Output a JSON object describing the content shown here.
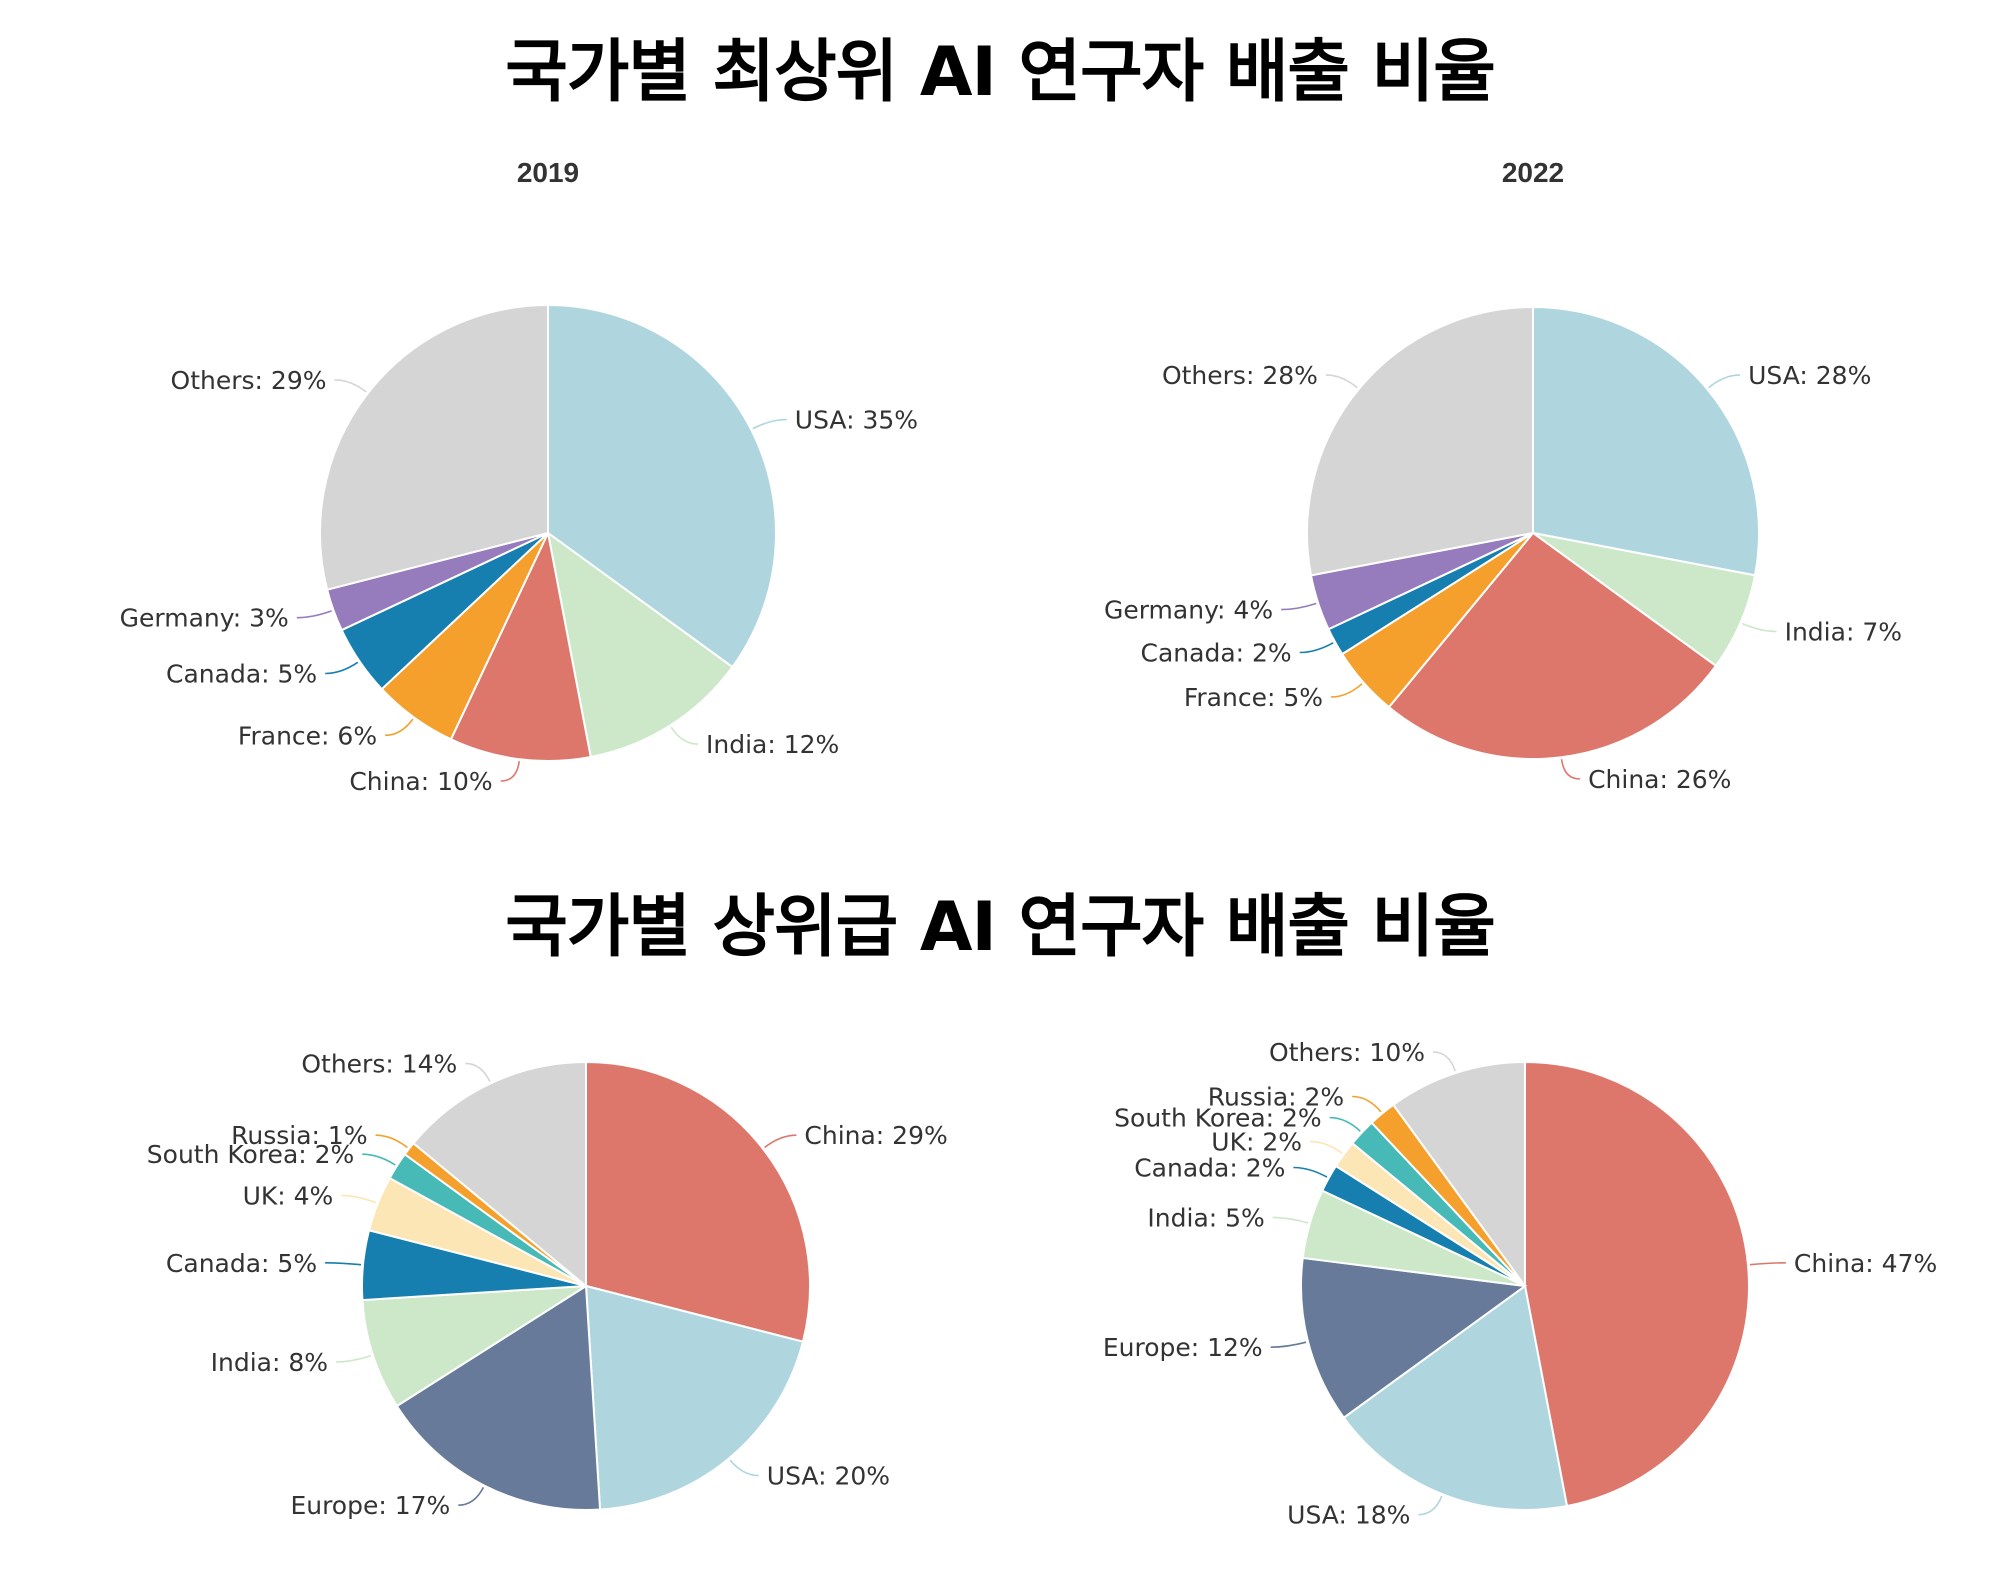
{
  "titles": {
    "top": "국가별 최상위 AI 연구자 배출 비율",
    "bottom": "국가별 상위급 AI 연구자 배출 비율"
  },
  "colors": {
    "USA": "#afd6df",
    "India": "#cde8c9",
    "China": "#dd776c",
    "France": "#f59f2c",
    "Canada": "#167fb0",
    "Germany": "#967bbd",
    "Others": "#d5d5d5",
    "Europe": "#677a99",
    "UK": "#fde6b6",
    "South Korea": "#47b9b6",
    "Russia": "#f59f2c"
  },
  "chart_data": [
    {
      "type": "pie",
      "group": "국가별 최상위 AI 연구자 배출 비율",
      "title": "2019",
      "slices": [
        {
          "label": "USA",
          "value": 35
        },
        {
          "label": "India",
          "value": 12
        },
        {
          "label": "China",
          "value": 10
        },
        {
          "label": "France",
          "value": 6
        },
        {
          "label": "Canada",
          "value": 5
        },
        {
          "label": "Germany",
          "value": 3
        },
        {
          "label": "Others",
          "value": 29
        }
      ]
    },
    {
      "type": "pie",
      "group": "국가별 최상위 AI 연구자 배출 비율",
      "title": "2022",
      "slices": [
        {
          "label": "USA",
          "value": 28
        },
        {
          "label": "India",
          "value": 7
        },
        {
          "label": "China",
          "value": 26
        },
        {
          "label": "France",
          "value": 5
        },
        {
          "label": "Canada",
          "value": 2
        },
        {
          "label": "Germany",
          "value": 4
        },
        {
          "label": "Others",
          "value": 28
        }
      ]
    },
    {
      "type": "pie",
      "group": "국가별 상위급 AI 연구자 배출 비율",
      "title": "",
      "slices": [
        {
          "label": "China",
          "value": 29
        },
        {
          "label": "USA",
          "value": 20
        },
        {
          "label": "Europe",
          "value": 17
        },
        {
          "label": "India",
          "value": 8
        },
        {
          "label": "Canada",
          "value": 5
        },
        {
          "label": "UK",
          "value": 4
        },
        {
          "label": "South Korea",
          "value": 2
        },
        {
          "label": "Russia",
          "value": 1
        },
        {
          "label": "Others",
          "value": 14
        }
      ]
    },
    {
      "type": "pie",
      "group": "국가별 상위급 AI 연구자 배출 비율",
      "title": "",
      "slices": [
        {
          "label": "China",
          "value": 47
        },
        {
          "label": "USA",
          "value": 18
        },
        {
          "label": "Europe",
          "value": 12
        },
        {
          "label": "India",
          "value": 5
        },
        {
          "label": "Canada",
          "value": 2
        },
        {
          "label": "UK",
          "value": 2
        },
        {
          "label": "South Korea",
          "value": 2
        },
        {
          "label": "Russia",
          "value": 2
        },
        {
          "label": "Others",
          "value": 10
        }
      ]
    }
  ]
}
